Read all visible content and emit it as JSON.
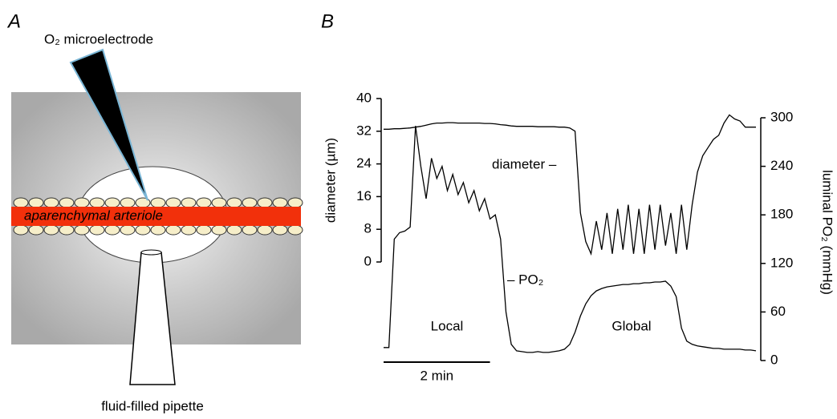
{
  "panels": {
    "a": {
      "label": "A",
      "electrode_label": "O₂ microelectrode",
      "vessel_label": "aparenchymal arteriole",
      "pipette_label": "fluid-filled pipette"
    },
    "b": {
      "label": "B"
    }
  },
  "chart_data": {
    "type": "line",
    "ylabel": "diameter (µm)",
    "y2label": "luminal PO₂ (mmHg)",
    "x": [
      0,
      0.1,
      0.2,
      0.3,
      0.4,
      0.5,
      0.6,
      0.7,
      0.8,
      0.9,
      1.0,
      1.1,
      1.2,
      1.3,
      1.4,
      1.5,
      1.6,
      1.7,
      1.8,
      1.9,
      2.0,
      2.1,
      2.2,
      2.3,
      2.4,
      2.5,
      2.6,
      2.7,
      2.8,
      2.9,
      3.0,
      3.1,
      3.2,
      3.3,
      3.4,
      3.5,
      3.6,
      3.7,
      3.8,
      3.9,
      4.0,
      4.1,
      4.2,
      4.3,
      4.4,
      4.5,
      4.6,
      4.7,
      4.8,
      4.9,
      5.0,
      5.1,
      5.2,
      5.3,
      5.4,
      5.5,
      5.6,
      5.7,
      5.8,
      5.9,
      6.0,
      6.1,
      6.2,
      6.3,
      6.4,
      6.5,
      6.6,
      6.7,
      6.8,
      6.9,
      7.0
    ],
    "xlim": [
      0,
      7
    ],
    "ylim": [
      0,
      40
    ],
    "yticks": [
      0,
      8,
      16,
      24,
      32,
      40
    ],
    "y2lim": [
      0,
      300
    ],
    "y2ticks": [
      0,
      60,
      120,
      180,
      240,
      300
    ],
    "series": [
      {
        "color": "#000000",
        "values": [
          32.5,
          32.5,
          32.6,
          32.6,
          32.7,
          32.8,
          33,
          33.2,
          33.5,
          33.8,
          34,
          34,
          34.1,
          34.1,
          34,
          34,
          34,
          34,
          34,
          33.9,
          33.9,
          33.8,
          33.6,
          33.5,
          33.3,
          33.2,
          33.2,
          33.2,
          33.2,
          33.1,
          33.1,
          33.1,
          33.1,
          33,
          33,
          32.8,
          32,
          12,
          5,
          2,
          10,
          3,
          12,
          2,
          13,
          3,
          14,
          2,
          13,
          2,
          14,
          3,
          14,
          4,
          12,
          2,
          14,
          3,
          14,
          22,
          26,
          28,
          30,
          31,
          34,
          36,
          35,
          34.5,
          33,
          33,
          33
        ]
      },
      {
        "color": "#000000",
        "axis": "y2",
        "values": [
          16,
          16,
          150,
          158,
          160,
          165,
          290,
          240,
          200,
          250,
          225,
          240,
          210,
          230,
          205,
          220,
          195,
          210,
          185,
          200,
          175,
          180,
          150,
          60,
          20,
          12,
          11,
          10,
          10,
          11,
          10,
          10,
          11,
          12,
          14,
          20,
          35,
          55,
          70,
          80,
          86,
          89,
          91,
          92,
          93,
          94,
          94,
          95,
          95,
          96,
          96,
          97,
          97,
          98,
          92,
          79,
          40,
          24,
          20,
          18,
          17,
          16,
          15,
          15,
          14,
          14,
          14,
          14,
          13,
          13,
          12
        ]
      }
    ],
    "annotations": [
      {
        "text": "diameter –"
      },
      {
        "text": "– PO₂"
      },
      {
        "text": "Local"
      },
      {
        "text": "Global"
      }
    ],
    "scale_bar": {
      "value": 2,
      "label": "2 min"
    }
  }
}
